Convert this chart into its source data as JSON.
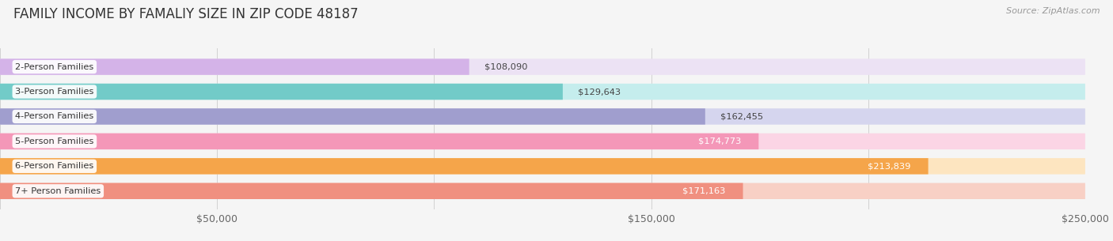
{
  "title": "FAMILY INCOME BY FAMALIY SIZE IN ZIP CODE 48187",
  "source": "Source: ZipAtlas.com",
  "categories": [
    "2-Person Families",
    "3-Person Families",
    "4-Person Families",
    "5-Person Families",
    "6-Person Families",
    "7+ Person Families"
  ],
  "values": [
    108090,
    129643,
    162455,
    174773,
    213839,
    171163
  ],
  "labels": [
    "$108,090",
    "$129,643",
    "$162,455",
    "$174,773",
    "$213,839",
    "$171,163"
  ],
  "bar_colors": [
    "#d4b3e8",
    "#72cbc8",
    "#a09ece",
    "#f497b8",
    "#f5a54a",
    "#f09080"
  ],
  "bar_bg_colors": [
    "#ece2f4",
    "#c5eded",
    "#d5d5ee",
    "#fbd5e5",
    "#fde5c0",
    "#f8d0c5"
  ],
  "label_inside": [
    false,
    false,
    false,
    true,
    true,
    true
  ],
  "label_pill_colors": [
    "",
    "",
    "",
    "#f497b8",
    "#f5a54a",
    "#f09080"
  ],
  "xlim": [
    0,
    250000
  ],
  "xticks": [
    0,
    50000,
    100000,
    150000,
    200000,
    250000
  ],
  "xtick_labels": [
    "",
    "$50,000",
    "",
    "$150,000",
    "",
    "$250,000"
  ],
  "title_fontsize": 12,
  "tick_fontsize": 9,
  "bar_height": 0.65,
  "background_color": "#f5f5f5"
}
